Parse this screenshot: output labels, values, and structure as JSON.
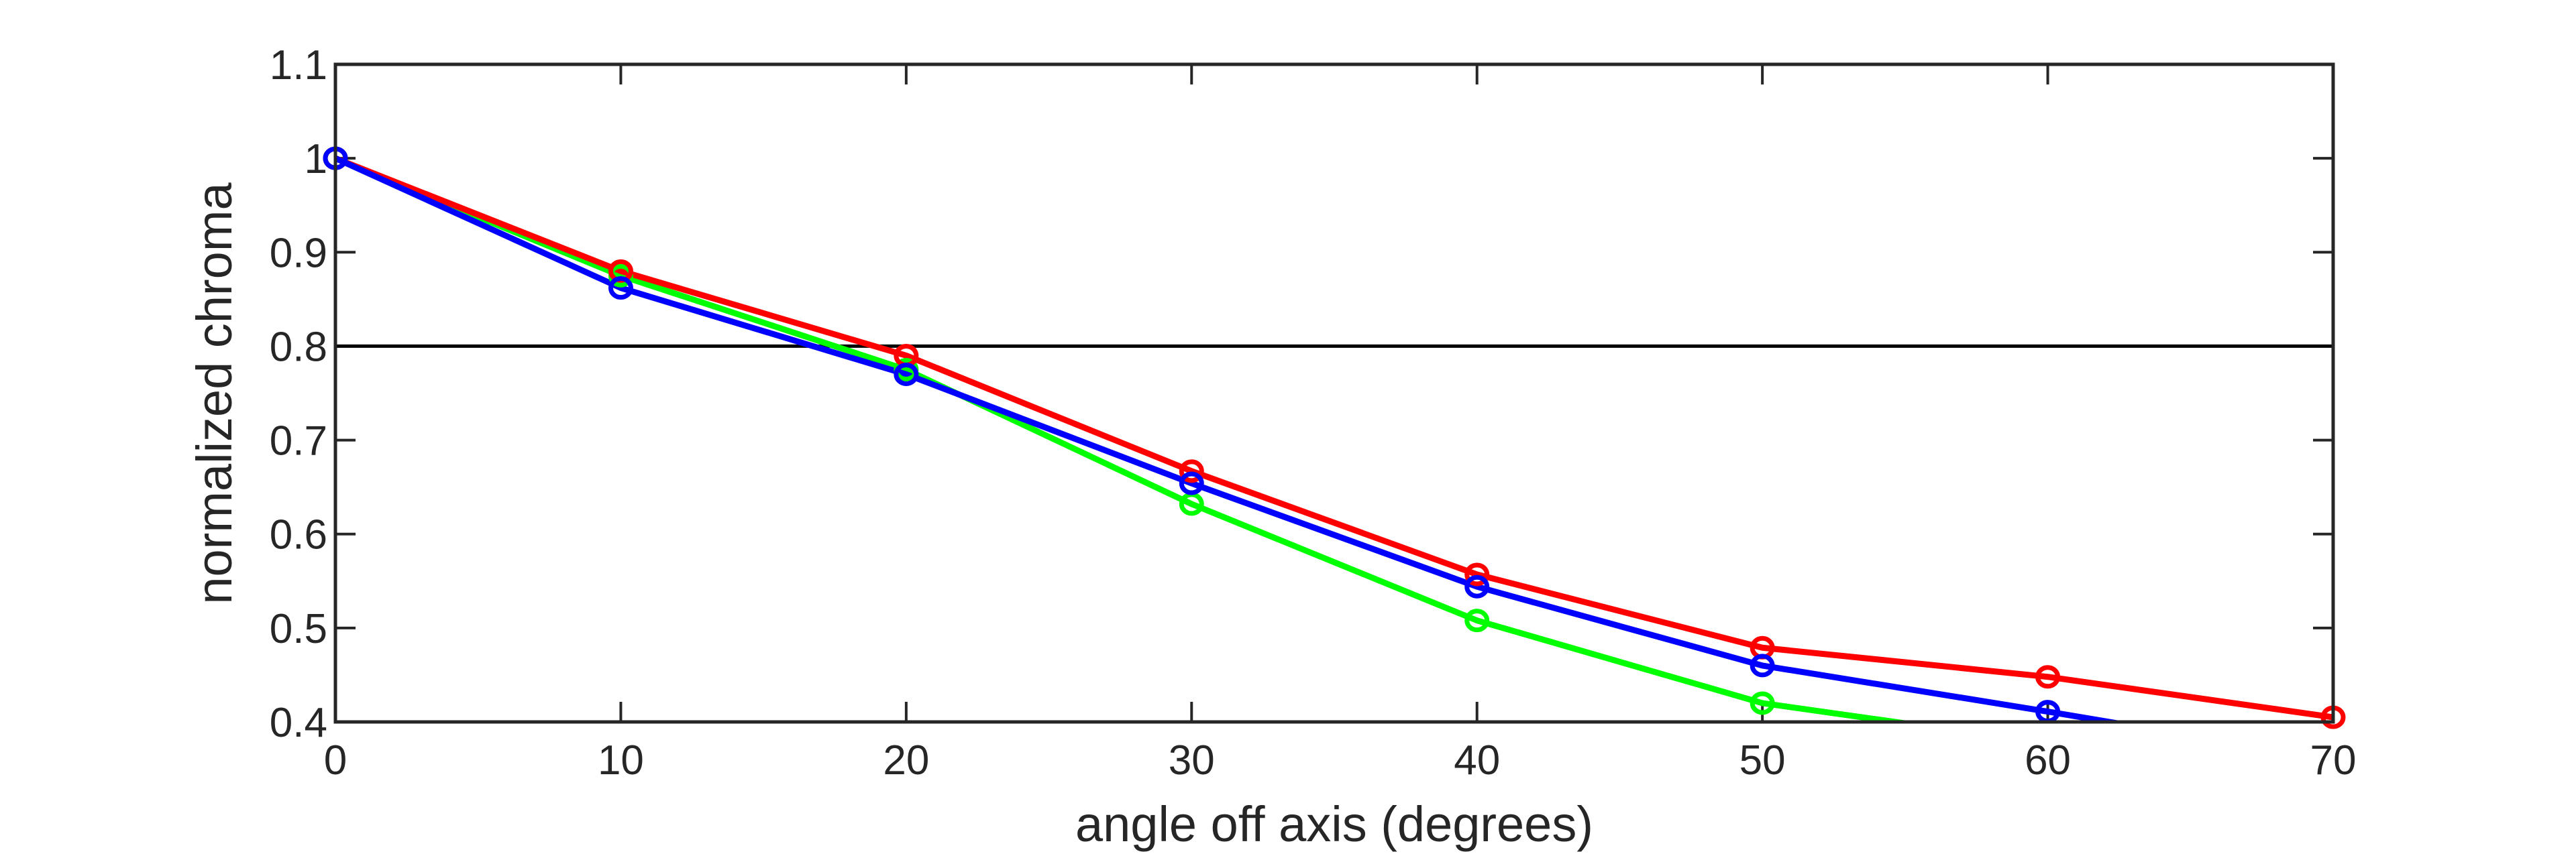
{
  "chart_data": {
    "type": "line",
    "title": "",
    "xlabel": "angle off axis (degrees)",
    "ylabel": "normalized chroma",
    "xlim": [
      0,
      70
    ],
    "ylim": [
      0.4,
      1.1
    ],
    "xticks": [
      "0",
      "10",
      "20",
      "30",
      "40",
      "50",
      "60",
      "70"
    ],
    "yticks": [
      "0.4",
      "0.5",
      "0.6",
      "0.7",
      "0.8",
      "0.9",
      "1",
      "1.1"
    ],
    "grid": false,
    "reference_line": {
      "y": 0.8,
      "color": "#000000"
    },
    "series": [
      {
        "name": "green",
        "color": "#00ff00",
        "x": [
          0,
          10,
          20,
          30,
          40,
          50,
          60
        ],
        "y": [
          1.0,
          0.875,
          0.775,
          0.632,
          0.508,
          0.42,
          0.377
        ],
        "markers": [
          true,
          true,
          true,
          true,
          true,
          true,
          false
        ]
      },
      {
        "name": "red",
        "color": "#ff0000",
        "x": [
          0,
          10,
          20,
          30,
          40,
          50,
          60,
          70
        ],
        "y": [
          1.0,
          0.88,
          0.79,
          0.667,
          0.557,
          0.479,
          0.448,
          0.405
        ],
        "markers": [
          true,
          true,
          true,
          true,
          true,
          true,
          true,
          true
        ]
      },
      {
        "name": "blue",
        "color": "#0000ff",
        "x": [
          0,
          10,
          20,
          30,
          40,
          50,
          60,
          70
        ],
        "y": [
          1.0,
          0.862,
          0.77,
          0.654,
          0.544,
          0.46,
          0.411,
          0.36
        ],
        "markers": [
          true,
          true,
          true,
          true,
          true,
          true,
          true,
          false
        ]
      }
    ]
  }
}
